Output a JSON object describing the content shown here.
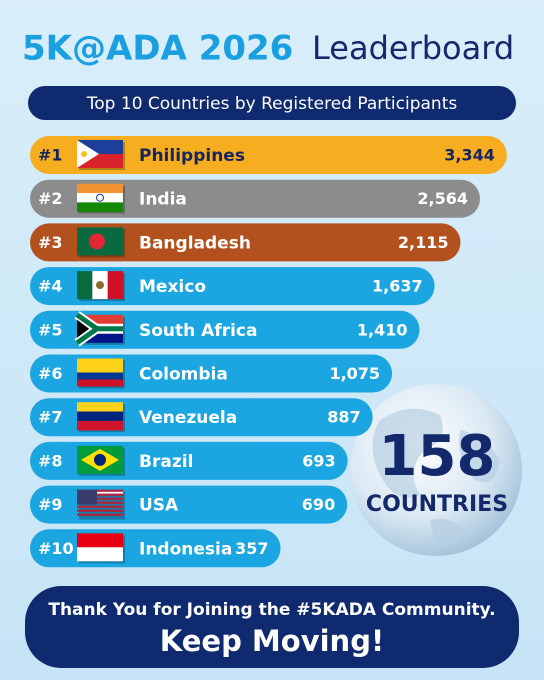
{
  "chart_data": {
    "type": "bar",
    "orientation": "horizontal",
    "title_part1": "5K@ADA 2026",
    "title_part2": "Leaderboard",
    "subtitle": "Top 10 Countries by Registered Participants",
    "ranks": [
      "#1",
      "#2",
      "#3",
      "#4",
      "#5",
      "#6",
      "#7",
      "#8",
      "#9",
      "#10"
    ],
    "categories": [
      "Philippines",
      "India",
      "Bangladesh",
      "Mexico",
      "South Africa",
      "Colombia",
      "Venezuela",
      "Brazil",
      "USA",
      "Indonesia"
    ],
    "values": [
      3344,
      2564,
      2115,
      1637,
      1410,
      1075,
      887,
      693,
      690,
      357
    ],
    "value_labels": [
      "3,344",
      "2,564",
      "2,115",
      "1,637",
      "1,410",
      "1,075",
      "887",
      "693",
      "690",
      "357"
    ],
    "colors": [
      "#f6ad1f",
      "#8c8c8c",
      "#b2511e",
      "#1ba6e2",
      "#1ba6e2",
      "#1ba6e2",
      "#1ba6e2",
      "#1ba6e2",
      "#1ba6e2",
      "#1ba6e2"
    ],
    "log_scale": true,
    "xlim": [
      30,
      4000
    ],
    "globe_number": 158,
    "globe_label": "COUNTRIES",
    "footer_line1": "Thank You for Joining the #5KADA Community.",
    "footer_line2": "Keep Moving!"
  }
}
